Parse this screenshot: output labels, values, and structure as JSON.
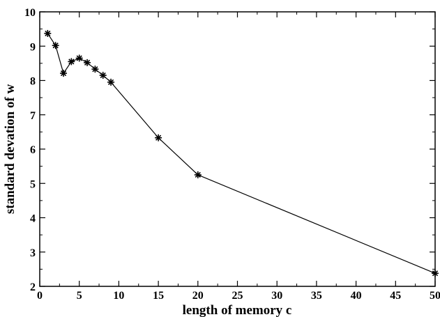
{
  "chart_data": {
    "type": "line",
    "title": "",
    "xlabel": "length of memory c",
    "ylabel": "standard devation of w",
    "xlim": [
      0,
      50
    ],
    "ylim": [
      2,
      10
    ],
    "xticks": [
      0,
      5,
      10,
      15,
      20,
      25,
      30,
      35,
      40,
      45,
      50
    ],
    "yticks": [
      2,
      3,
      4,
      5,
      6,
      7,
      8,
      9,
      10
    ],
    "grid": false,
    "marker": "asterisk",
    "line_color": "#000000",
    "series": [
      {
        "x": [
          1,
          2,
          3,
          4,
          5,
          6,
          7,
          8,
          9,
          15,
          20,
          50
        ],
        "y": [
          9.37,
          9.02,
          8.21,
          8.55,
          8.65,
          8.52,
          8.33,
          8.15,
          7.95,
          6.33,
          5.25,
          2.38
        ]
      }
    ]
  }
}
